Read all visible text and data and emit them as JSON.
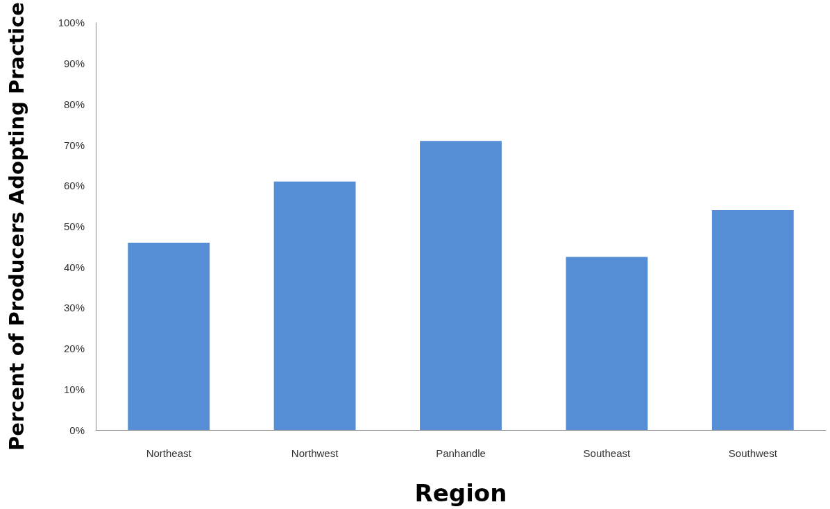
{
  "chart_data": {
    "type": "bar",
    "xlabel": "Region",
    "ylabel": "Percent of Producers Adopting Practice",
    "categories": [
      "Northeast",
      "Northwest",
      "Panhandle",
      "Southeast",
      "Southwest"
    ],
    "values": [
      46,
      61,
      71,
      42.5,
      54
    ],
    "color": "#558ed5",
    "ylim": [
      0,
      100
    ],
    "yticks": [
      {
        "value": 0,
        "label": "0%"
      },
      {
        "value": 10,
        "label": "10%"
      },
      {
        "value": 20,
        "label": "20%"
      },
      {
        "value": 30,
        "label": "30%"
      },
      {
        "value": 40,
        "label": "40%"
      },
      {
        "value": 50,
        "label": "50%"
      },
      {
        "value": 60,
        "label": "60%"
      },
      {
        "value": 70,
        "label": "70%"
      },
      {
        "value": 80,
        "label": "80%"
      },
      {
        "value": 90,
        "label": "90%"
      },
      {
        "value": 100,
        "label": "100%"
      }
    ],
    "grid": false
  }
}
